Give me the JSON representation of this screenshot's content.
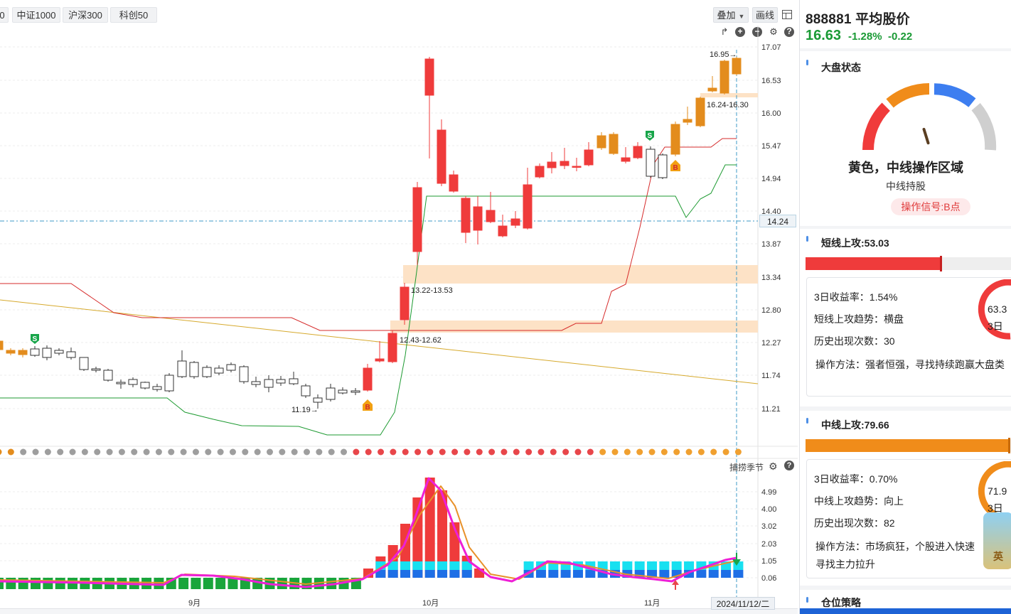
{
  "index_tabs": [
    "0",
    "中证1000",
    "沪深300",
    "科创50"
  ],
  "toolbar": {
    "overlay_label": "叠加",
    "draw_label": "画线"
  },
  "y_axis": [
    "17.07",
    "16.53",
    "16.00",
    "15.47",
    "14.94",
    "14.40",
    "13.87",
    "13.34",
    "12.80",
    "12.27",
    "11.74",
    "11.21"
  ],
  "crosshair_price": "14.24",
  "annotations": {
    "high_arrow": "16.95→",
    "zone_top": "16.24-16.30",
    "zone_mid": "13.22-13.53",
    "zone_low": "12.43-12.62",
    "low_price": "11.19→"
  },
  "signals": {
    "buy": "B",
    "sell": "S"
  },
  "sub_indicator": {
    "title": "捕捞季节",
    "y_axis": [
      "4.99",
      "4.00",
      "3.02",
      "2.03",
      "1.05",
      "0.06"
    ]
  },
  "x_axis": [
    "9月",
    "10月",
    "11月"
  ],
  "crosshair_date": "2024/11/12/二",
  "stock": {
    "code_name": "888881 平均股价",
    "price": "16.63",
    "pct": "-1.28%",
    "change": "-0.22"
  },
  "market_state": {
    "title": "大盘状态",
    "gauge_value": 0.42,
    "status": "黄色，中线操作区域",
    "advice": "中线持股",
    "signal": "操作信号:B点"
  },
  "short_attack": {
    "title": "短线上攻:53.03",
    "bar_value": 0.66,
    "return_3d": "3日收益率：1.54%",
    "trend": "短线上攻趋势：横盘",
    "count": "历史出现次数：30",
    "method": "操作方法：强者恒强，寻找持续跑赢大盘类",
    "ring_value": "63.3",
    "ring_label": "3日"
  },
  "mid_attack": {
    "title": "中线上攻:79.66",
    "bar_value": 0.99,
    "return_3d": "3日收益率：0.70%",
    "trend": "中线上攻趋势：向上",
    "count": "历史出现次数：82",
    "method_1": "操作方法：市场疯狂，个股进入快速",
    "method_2": "寻找主力拉升",
    "ring_value": "71.9",
    "ring_label": "3日"
  },
  "position": {
    "title": "仓位策略"
  },
  "ime_badge": "英",
  "colors": {
    "up": "#ef3b3b",
    "down": "#1a9a35",
    "orange": "#e38c1d",
    "red_line": "#d62b2b",
    "green_line": "#1d9a31",
    "yellow_line": "#d6a92c",
    "zone": "#fde2c6",
    "crosshair": "#3d9ac7"
  }
}
